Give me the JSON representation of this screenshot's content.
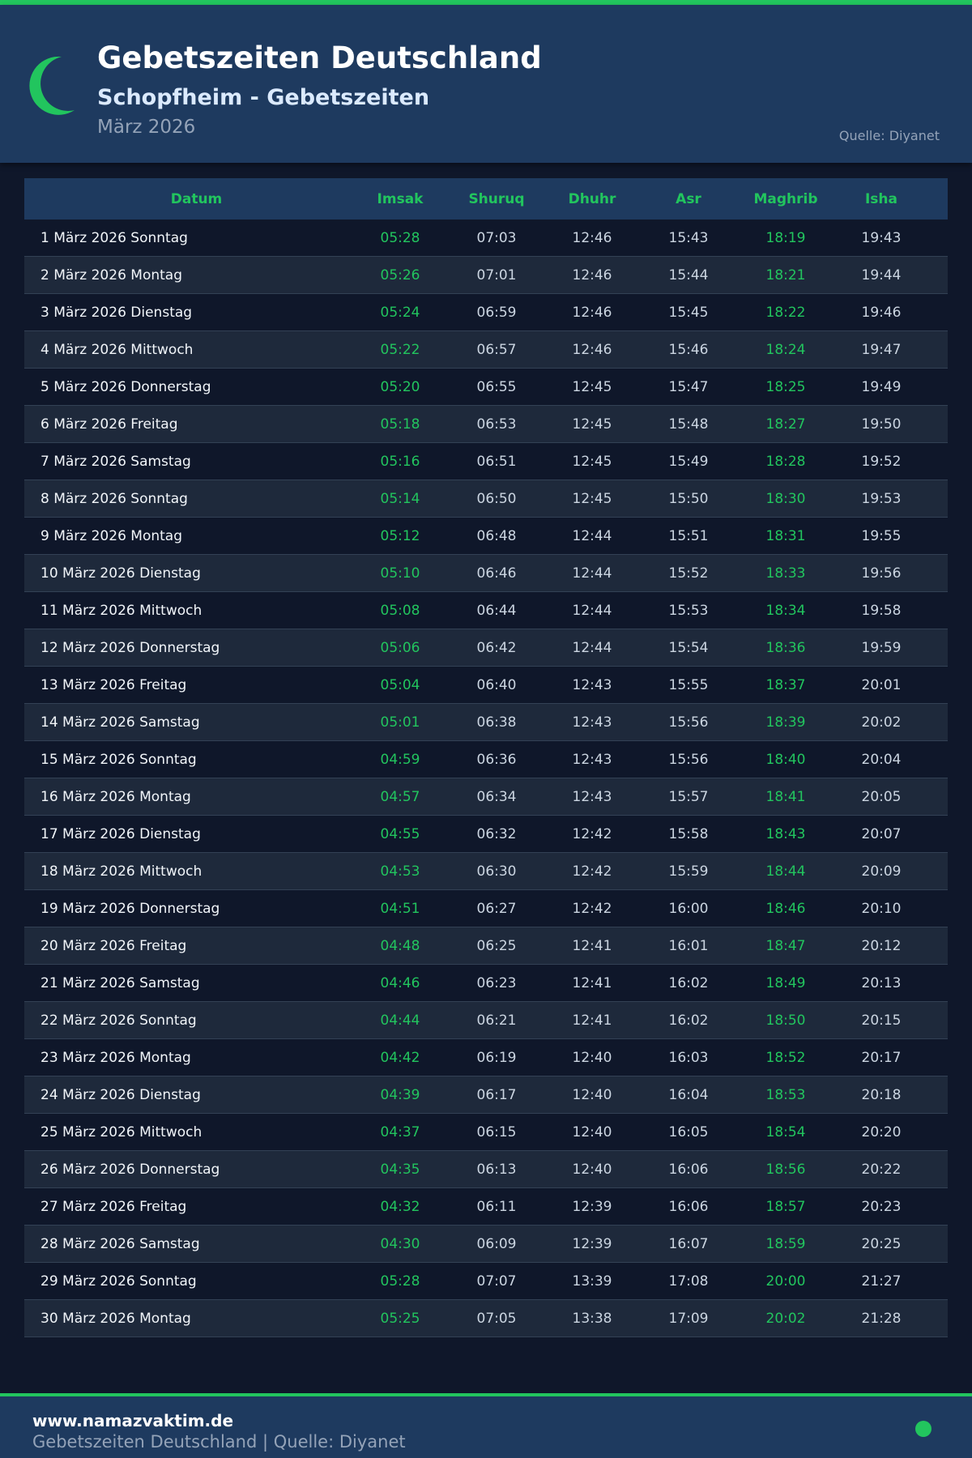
{
  "header": {
    "title": "Gebetszeiten Deutschland",
    "subtitle": "Schopfheim - Gebetszeiten",
    "month": "März 2026",
    "source": "Quelle: Diyanet"
  },
  "colors": {
    "accent": "#22c55e",
    "header_bg": "#1e3a5f",
    "page_bg": "#0f172a"
  },
  "table": {
    "columns": [
      "Datum",
      "Imsak",
      "Shuruq",
      "Dhuhr",
      "Asr",
      "Maghrib",
      "Isha"
    ],
    "rows": [
      [
        "1 März 2026 Sonntag",
        "05:28",
        "07:03",
        "12:46",
        "15:43",
        "18:19",
        "19:43"
      ],
      [
        "2 März 2026 Montag",
        "05:26",
        "07:01",
        "12:46",
        "15:44",
        "18:21",
        "19:44"
      ],
      [
        "3 März 2026 Dienstag",
        "05:24",
        "06:59",
        "12:46",
        "15:45",
        "18:22",
        "19:46"
      ],
      [
        "4 März 2026 Mittwoch",
        "05:22",
        "06:57",
        "12:46",
        "15:46",
        "18:24",
        "19:47"
      ],
      [
        "5 März 2026 Donnerstag",
        "05:20",
        "06:55",
        "12:45",
        "15:47",
        "18:25",
        "19:49"
      ],
      [
        "6 März 2026 Freitag",
        "05:18",
        "06:53",
        "12:45",
        "15:48",
        "18:27",
        "19:50"
      ],
      [
        "7 März 2026 Samstag",
        "05:16",
        "06:51",
        "12:45",
        "15:49",
        "18:28",
        "19:52"
      ],
      [
        "8 März 2026 Sonntag",
        "05:14",
        "06:50",
        "12:45",
        "15:50",
        "18:30",
        "19:53"
      ],
      [
        "9 März 2026 Montag",
        "05:12",
        "06:48",
        "12:44",
        "15:51",
        "18:31",
        "19:55"
      ],
      [
        "10 März 2026 Dienstag",
        "05:10",
        "06:46",
        "12:44",
        "15:52",
        "18:33",
        "19:56"
      ],
      [
        "11 März 2026 Mittwoch",
        "05:08",
        "06:44",
        "12:44",
        "15:53",
        "18:34",
        "19:58"
      ],
      [
        "12 März 2026 Donnerstag",
        "05:06",
        "06:42",
        "12:44",
        "15:54",
        "18:36",
        "19:59"
      ],
      [
        "13 März 2026 Freitag",
        "05:04",
        "06:40",
        "12:43",
        "15:55",
        "18:37",
        "20:01"
      ],
      [
        "14 März 2026 Samstag",
        "05:01",
        "06:38",
        "12:43",
        "15:56",
        "18:39",
        "20:02"
      ],
      [
        "15 März 2026 Sonntag",
        "04:59",
        "06:36",
        "12:43",
        "15:56",
        "18:40",
        "20:04"
      ],
      [
        "16 März 2026 Montag",
        "04:57",
        "06:34",
        "12:43",
        "15:57",
        "18:41",
        "20:05"
      ],
      [
        "17 März 2026 Dienstag",
        "04:55",
        "06:32",
        "12:42",
        "15:58",
        "18:43",
        "20:07"
      ],
      [
        "18 März 2026 Mittwoch",
        "04:53",
        "06:30",
        "12:42",
        "15:59",
        "18:44",
        "20:09"
      ],
      [
        "19 März 2026 Donnerstag",
        "04:51",
        "06:27",
        "12:42",
        "16:00",
        "18:46",
        "20:10"
      ],
      [
        "20 März 2026 Freitag",
        "04:48",
        "06:25",
        "12:41",
        "16:01",
        "18:47",
        "20:12"
      ],
      [
        "21 März 2026 Samstag",
        "04:46",
        "06:23",
        "12:41",
        "16:02",
        "18:49",
        "20:13"
      ],
      [
        "22 März 2026 Sonntag",
        "04:44",
        "06:21",
        "12:41",
        "16:02",
        "18:50",
        "20:15"
      ],
      [
        "23 März 2026 Montag",
        "04:42",
        "06:19",
        "12:40",
        "16:03",
        "18:52",
        "20:17"
      ],
      [
        "24 März 2026 Dienstag",
        "04:39",
        "06:17",
        "12:40",
        "16:04",
        "18:53",
        "20:18"
      ],
      [
        "25 März 2026 Mittwoch",
        "04:37",
        "06:15",
        "12:40",
        "16:05",
        "18:54",
        "20:20"
      ],
      [
        "26 März 2026 Donnerstag",
        "04:35",
        "06:13",
        "12:40",
        "16:06",
        "18:56",
        "20:22"
      ],
      [
        "27 März 2026 Freitag",
        "04:32",
        "06:11",
        "12:39",
        "16:06",
        "18:57",
        "20:23"
      ],
      [
        "28 März 2026 Samstag",
        "04:30",
        "06:09",
        "12:39",
        "16:07",
        "18:59",
        "20:25"
      ],
      [
        "29 März 2026 Sonntag",
        "05:28",
        "07:07",
        "13:39",
        "17:08",
        "20:00",
        "21:27"
      ],
      [
        "30 März 2026 Montag",
        "05:25",
        "07:05",
        "13:38",
        "17:09",
        "20:02",
        "21:28"
      ]
    ]
  },
  "footer": {
    "site": "www.namazvaktim.de",
    "text": "Gebetszeiten Deutschland | Quelle: Diyanet"
  }
}
